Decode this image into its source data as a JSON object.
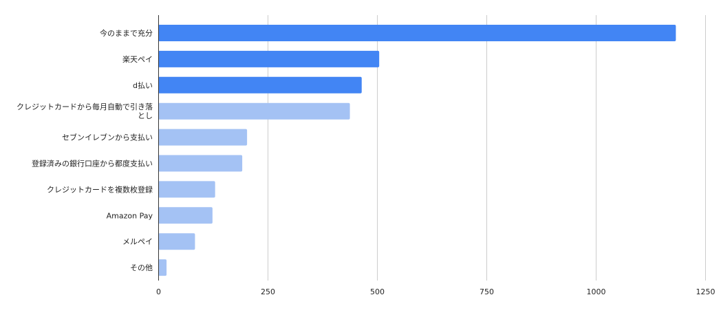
{
  "chart_data": {
    "type": "bar",
    "orientation": "horizontal",
    "title": "",
    "xlabel": "",
    "ylabel": "",
    "xlim": [
      0,
      1250
    ],
    "x_ticks": [
      0,
      250,
      500,
      750,
      1000,
      1250
    ],
    "grid": true,
    "categories": [
      [
        "今のままで充分"
      ],
      [
        "楽天ペイ"
      ],
      [
        "d払い"
      ],
      [
        "クレジットカードから毎月自動で引き落",
        "とし"
      ],
      [
        "セブンイレブンから支払い"
      ],
      [
        "登録済みの銀行口座から都度支払い"
      ],
      [
        "クレジットカードを複数枚登録"
      ],
      [
        "Amazon Pay"
      ],
      [
        "メルペイ"
      ],
      [
        "その他"
      ]
    ],
    "values": [
      1183,
      505,
      465,
      438,
      203,
      192,
      130,
      124,
      84,
      19
    ],
    "colors": {
      "highlight": "#4285f4",
      "normal": "#a4c2f4"
    },
    "highlighted_count": 3
  }
}
